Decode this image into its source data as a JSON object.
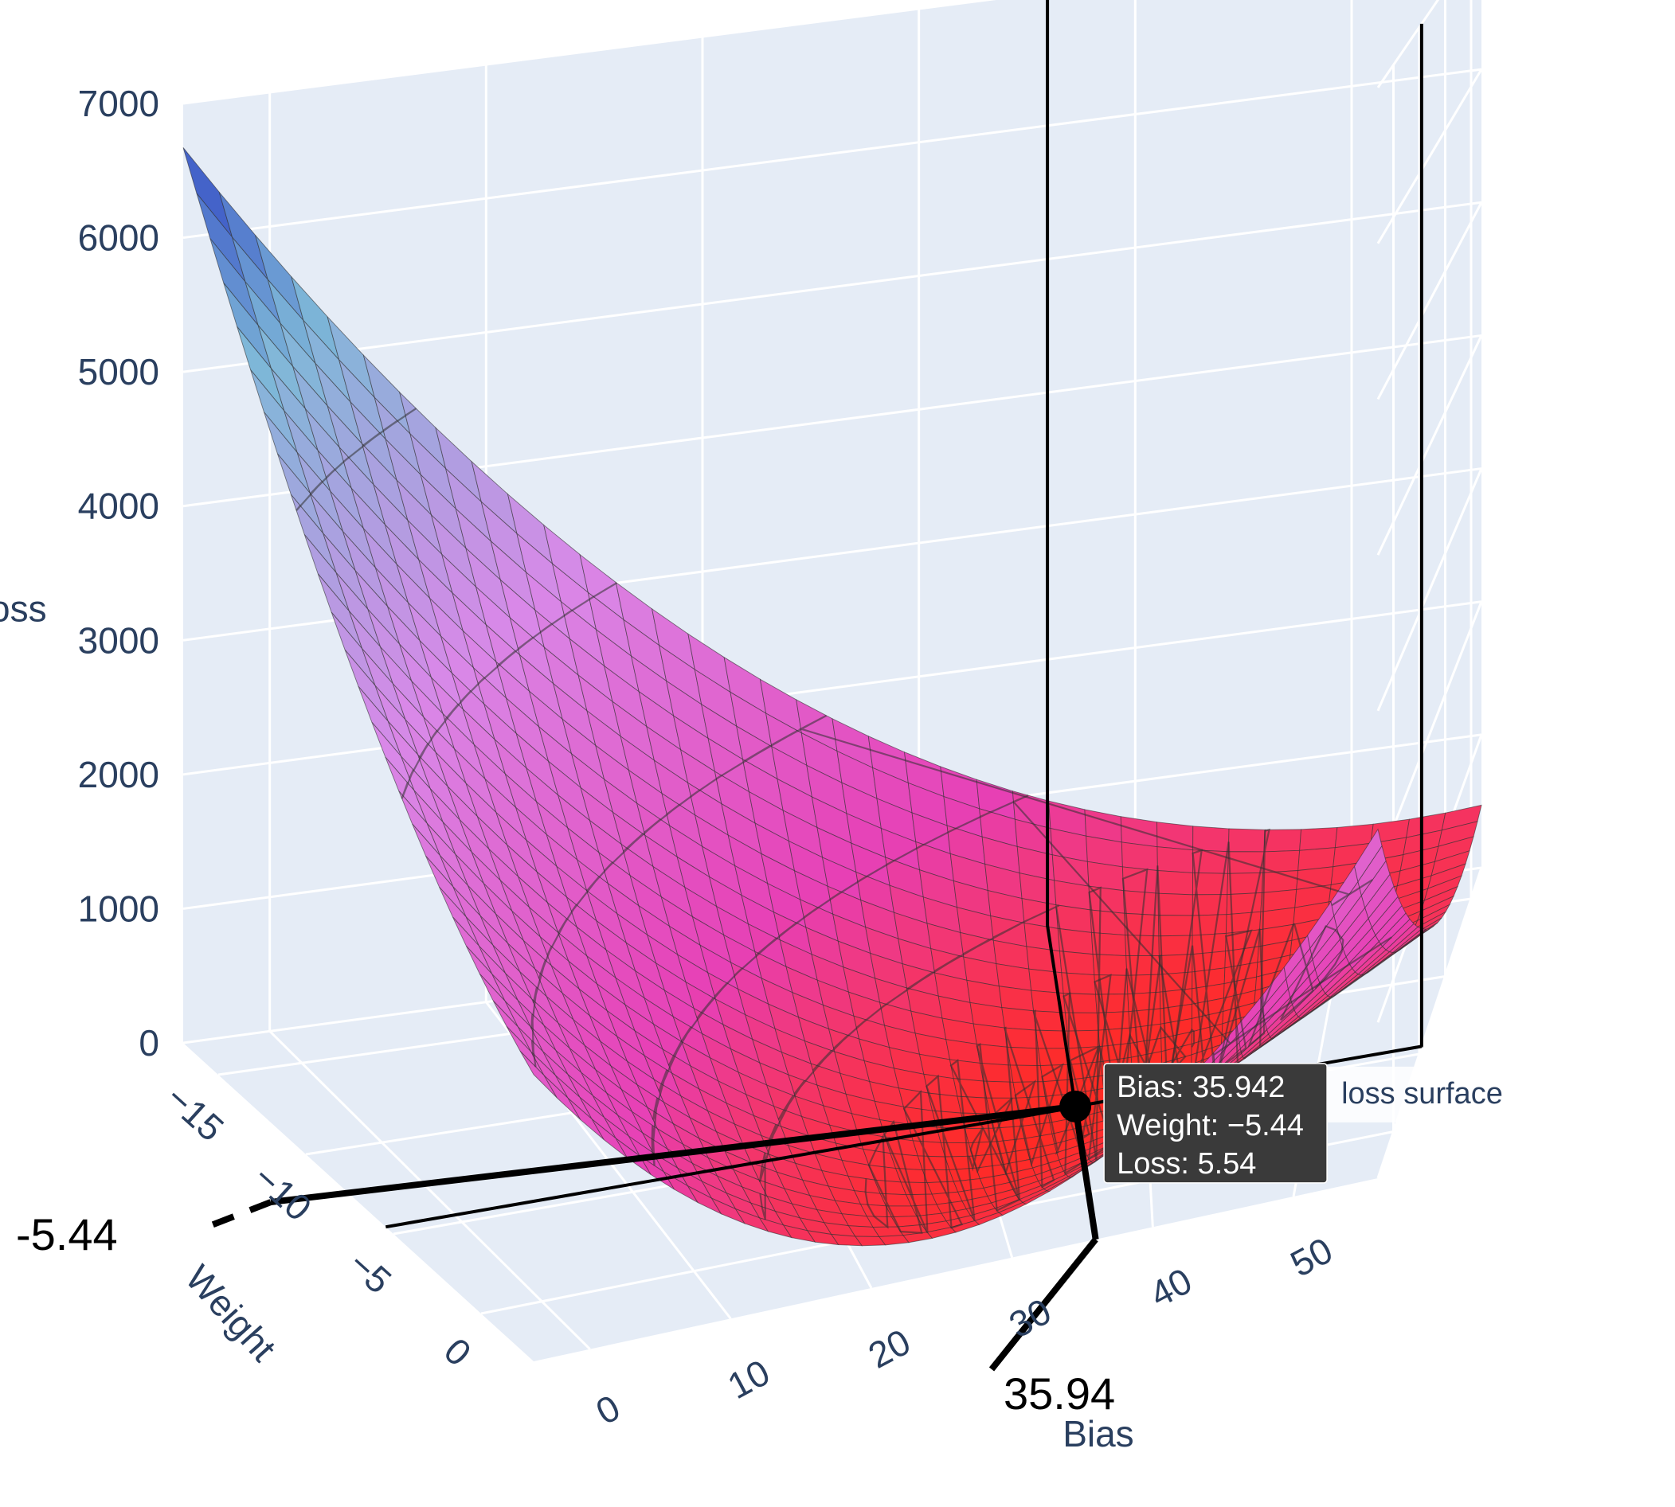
{
  "chart": {
    "type": "surface3d",
    "z_axis": {
      "label": "Loss",
      "ticks": [
        0,
        1000,
        2000,
        3000,
        4000,
        5000,
        6000,
        7000
      ],
      "range": [
        0,
        7000
      ],
      "label_fontsize": 46,
      "tick_fontsize": 46,
      "tick_color": "#2a3f5f"
    },
    "y_axis": {
      "label": "Weight",
      "ticks": [
        "−15",
        "−10",
        "−5",
        "0"
      ],
      "tick_values": [
        -15,
        -10,
        -5,
        0
      ],
      "range": [
        -17,
        3
      ],
      "label_fontsize": 46,
      "tick_fontsize": 46,
      "tick_color": "#2a3f5f"
    },
    "x_axis": {
      "label": "Bias",
      "ticks": [
        0,
        10,
        20,
        30,
        40,
        50
      ],
      "range": [
        -4,
        56
      ],
      "label_fontsize": 46,
      "tick_fontsize": 46,
      "tick_color": "#2a3f5f"
    },
    "surface": {
      "name": "loss surface",
      "colorscale_low": "#ff2a22",
      "colorscale_mid_low": "#e740b5",
      "colorscale_mid": "#d988e8",
      "colorscale_mid_high": "#7fb8d8",
      "colorscale_high": "#2030c0",
      "contour_line_color": "#303030",
      "contour_line_opacity": 0.6,
      "grid_color": "#ffffff",
      "wall_color": "#e5ecf6"
    },
    "background_color": "#ffffff"
  },
  "marker": {
    "bias": 35.942,
    "weight": -5.44,
    "loss": 5.54,
    "radius": 20,
    "fill": "#000000",
    "line_width": 6
  },
  "tooltip": {
    "bias_label": "Bias: 35.942",
    "weight_label": "Weight: −5.44",
    "loss_label": "Loss: 5.54",
    "background": "#3a3a3a",
    "text_color": "#ffffff",
    "font_size": 38
  },
  "legend": {
    "text": "loss surface",
    "font_size": 38,
    "text_color": "#2a3f5f",
    "background": "rgba(255,255,255,0.85)"
  },
  "annotations": {
    "weight_value": "-5.44",
    "bias_value": "35.94",
    "font_size": 56,
    "text_color": "#000000"
  }
}
